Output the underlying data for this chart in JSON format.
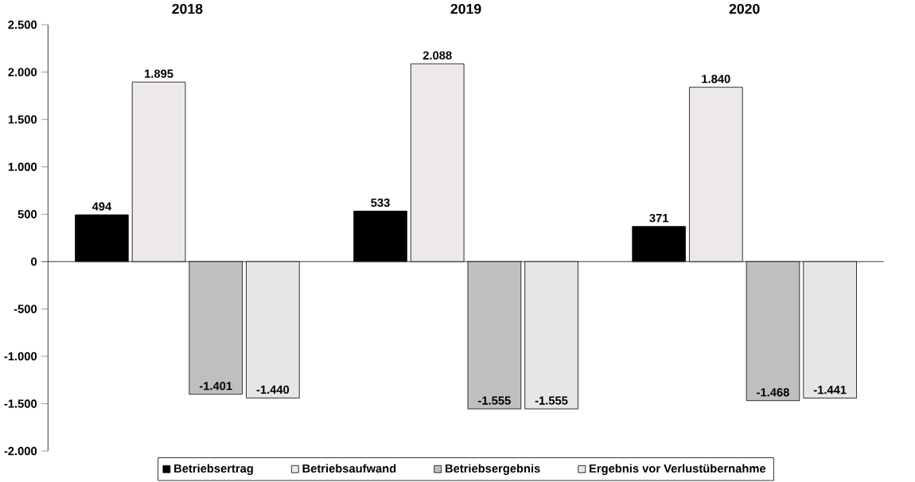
{
  "chart_data": {
    "type": "bar",
    "categories": [
      "2018",
      "2019",
      "2020"
    ],
    "series": [
      {
        "name": "Betriebsertrag",
        "color": "#000000",
        "values": [
          494,
          533,
          371
        ],
        "value_labels": [
          "494",
          "533",
          "371"
        ]
      },
      {
        "name": "Betriebsaufwand",
        "color": "#ece8ec",
        "values": [
          1895,
          2088,
          1840
        ],
        "value_labels": [
          "1.895",
          "2.088",
          "1.840"
        ]
      },
      {
        "name": "Betriebsergebnis",
        "color": "#bfbfbf",
        "values": [
          -1401,
          -1555,
          -1468
        ],
        "value_labels": [
          "-1.401",
          "-1.555",
          "-1.468"
        ]
      },
      {
        "name": "Ergebnis vor Verlustübernahme",
        "color": "#e6e6e6",
        "values": [
          -1440,
          -1555,
          -1441
        ],
        "value_labels": [
          "-1.440",
          "-1.555",
          "-1.441"
        ]
      }
    ],
    "ylim": [
      -2000,
      2500
    ],
    "yticks": [
      {
        "value": -2000,
        "label": "-2.000"
      },
      {
        "value": -1500,
        "label": "-1.500"
      },
      {
        "value": -1000,
        "label": "-1.000"
      },
      {
        "value": -500,
        "label": "-500"
      },
      {
        "value": 0,
        "label": "0"
      },
      {
        "value": 500,
        "label": "500"
      },
      {
        "value": 1000,
        "label": "1.000"
      },
      {
        "value": 1500,
        "label": "1.500"
      },
      {
        "value": 2000,
        "label": "2.000"
      },
      {
        "value": 2500,
        "label": "2.500"
      }
    ],
    "legend": "bottom"
  }
}
